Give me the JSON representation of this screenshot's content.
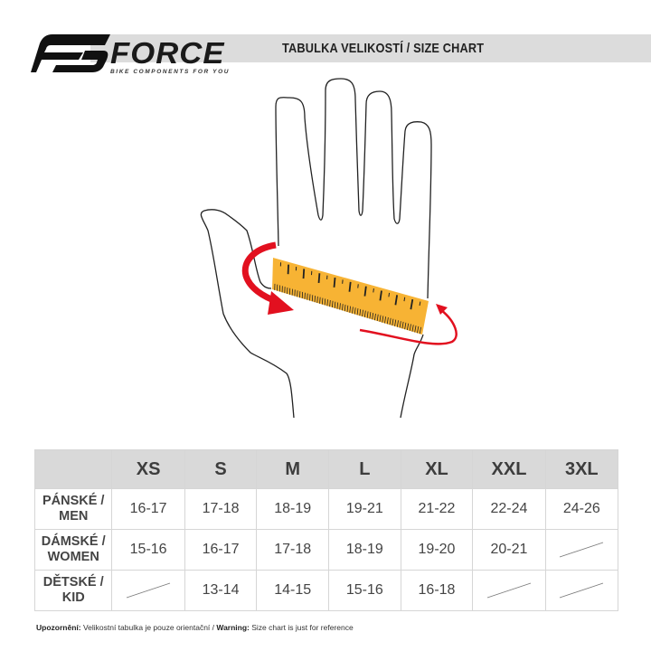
{
  "brand": {
    "logo_text": "FORCE",
    "tagline": "BIKE COMPONENTS FOR YOU"
  },
  "header": {
    "title": "TABULKA VELIKOSTÍ / SIZE CHART"
  },
  "colors": {
    "tape": "#f7b334",
    "arrow": "#e2101f",
    "header_band": "#dcdcdc",
    "table_header": "#d9d9d9"
  },
  "table": {
    "columns": [
      "XS",
      "S",
      "M",
      "L",
      "XL",
      "XXL",
      "3XL"
    ],
    "rows": [
      {
        "label_cz": "PÁNSKÉ /",
        "label_en": "MEN",
        "values": [
          "16-17",
          "17-18",
          "18-19",
          "19-21",
          "21-22",
          "22-24",
          "24-26"
        ]
      },
      {
        "label_cz": "DÁMSKÉ /",
        "label_en": "WOMEN",
        "values": [
          "15-16",
          "16-17",
          "17-18",
          "18-19",
          "19-20",
          "20-21",
          null
        ]
      },
      {
        "label_cz": "DĚTSKÉ /",
        "label_en": "KID",
        "values": [
          null,
          "13-14",
          "14-15",
          "15-16",
          "16-18",
          null,
          null
        ]
      }
    ]
  },
  "note": {
    "label_cz": "Upozornění:",
    "text_cz": " Velikostní tabulka je pouze orientační / ",
    "label_en": "Warning:",
    "text_en": " Size chart is just for reference"
  }
}
